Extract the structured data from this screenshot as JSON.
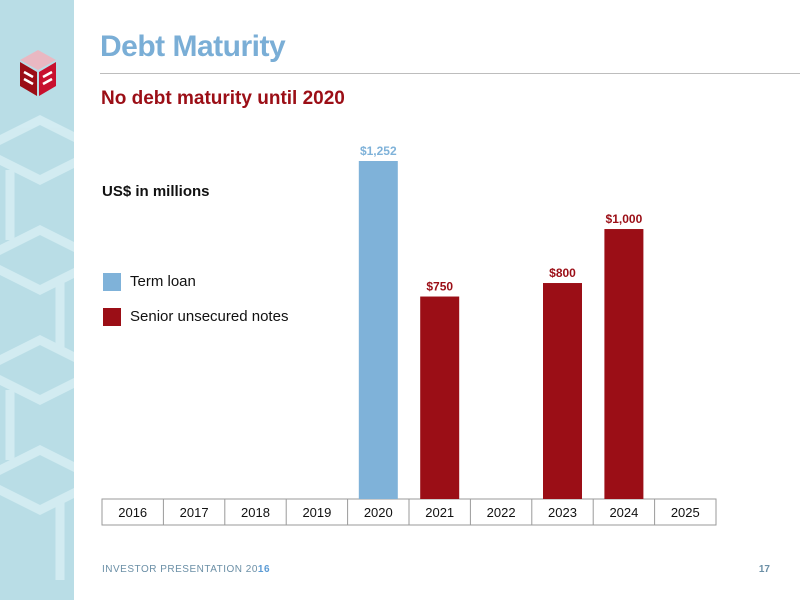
{
  "slide": {
    "title": "Debt Maturity",
    "subtitle": "No debt maturity until 2020",
    "units_label": "US$ in millions"
  },
  "footer": {
    "text": "INVESTOR PRESENTATION 20",
    "text_accent": "16",
    "page_number": "17"
  },
  "logo": {
    "icon": "company-logo-cube-icon",
    "colors": {
      "top": "#e9b8c2",
      "left": "#9b0e16",
      "right": "#c8102e"
    }
  },
  "legend": [
    {
      "label": "Term loan",
      "color": "#7fb2d9"
    },
    {
      "label": "Senior unsecured notes",
      "color": "#9b0e16"
    }
  ],
  "colors": {
    "title": "#7aaed6",
    "subtitle": "#9b0e16",
    "term_loan": "#7fb2d9",
    "senior_notes": "#9b0e16",
    "sidebar": "#b9dde6"
  },
  "chart_data": {
    "type": "bar",
    "stacked": false,
    "categories": [
      "2016",
      "2017",
      "2018",
      "2019",
      "2020",
      "2021",
      "2022",
      "2023",
      "2024",
      "2025"
    ],
    "series": [
      {
        "name": "Term loan",
        "color": "#7fb2d9",
        "values": [
          null,
          null,
          null,
          null,
          1252,
          null,
          null,
          null,
          null,
          null
        ]
      },
      {
        "name": "Senior unsecured notes",
        "color": "#9b0e16",
        "values": [
          null,
          null,
          null,
          null,
          null,
          750,
          null,
          800,
          1000,
          null
        ]
      }
    ],
    "data_labels": [
      "",
      "",
      "",
      "",
      "$1,252",
      "$750",
      "",
      "$800",
      "$1,000",
      ""
    ],
    "ylabel": "US$ in millions",
    "ylim": [
      0,
      1252
    ],
    "grid": false,
    "legend_position": "left"
  }
}
